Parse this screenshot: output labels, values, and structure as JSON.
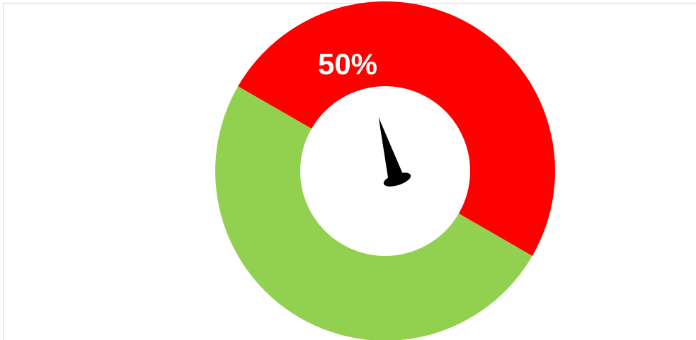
{
  "chart_data": {
    "type": "pie",
    "subtype": "doughnut-gauge",
    "slices": [
      {
        "value": 50,
        "color": "#92d050"
      },
      {
        "value": 50,
        "color": "#ff0000"
      }
    ],
    "data_labels": [
      "50%"
    ],
    "label_color": "#ffffff",
    "needle": {
      "value_percent": 8,
      "color": "#000000"
    },
    "inner_color": "#ffffff",
    "legend": "none"
  }
}
